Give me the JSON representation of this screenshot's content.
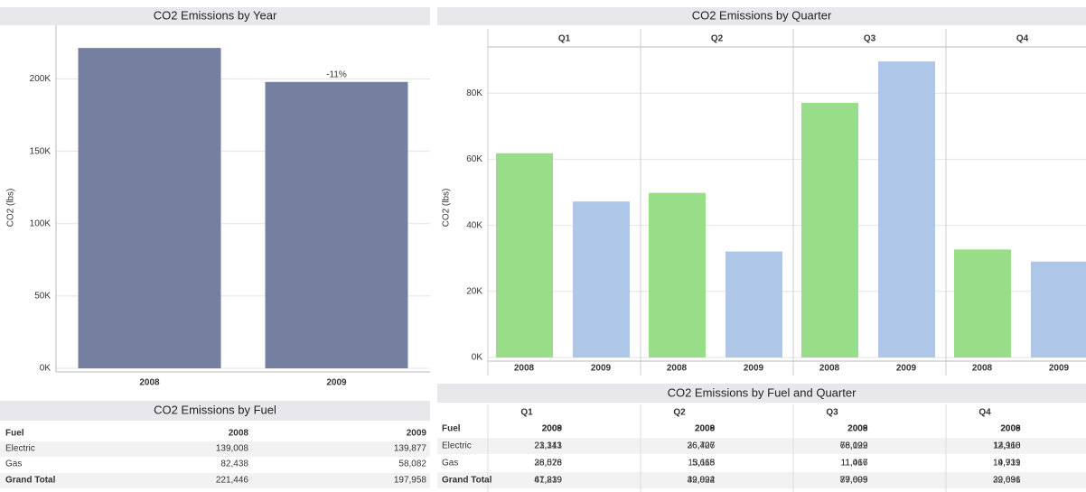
{
  "chart_data": [
    {
      "type": "bar",
      "title": "CO2 Emissions by Year",
      "y_label": "CO2 (lbs)",
      "categories": [
        "2008",
        "2009"
      ],
      "values": [
        221446,
        197958
      ],
      "color": "#757fa0",
      "annotation": "-11%",
      "ylim": [
        0,
        234000
      ],
      "yticks": [
        {
          "value": 0,
          "label": "0K"
        },
        {
          "value": 50000,
          "label": "50K"
        },
        {
          "value": 100000,
          "label": "100K"
        },
        {
          "value": 150000,
          "label": "150K"
        },
        {
          "value": 200000,
          "label": "200K"
        }
      ],
      "grid": true
    },
    {
      "type": "grouped-bar",
      "title": "CO2 Emissions by Quarter",
      "y_label": "CO2 (lbs)",
      "categories": [
        "Q1",
        "Q2",
        "Q3",
        "Q4"
      ],
      "series": [
        {
          "name": "2008",
          "color": "#98dd87",
          "values": [
            61839,
            49822,
            77095,
            32691
          ]
        },
        {
          "name": "2009",
          "color": "#aec7e8",
          "values": [
            47219,
            32094,
            89609,
            29036
          ]
        }
      ],
      "ylim": [
        0,
        94000
      ],
      "yticks": [
        {
          "value": 0,
          "label": "0K"
        },
        {
          "value": 20000,
          "label": "20K"
        },
        {
          "value": 40000,
          "label": "40K"
        },
        {
          "value": 60000,
          "label": "60K"
        },
        {
          "value": 80000,
          "label": "80K"
        }
      ],
      "grid": true
    }
  ],
  "fuel_table": {
    "title": "CO2 Emissions by Fuel",
    "header": [
      "Fuel",
      "2008",
      "2009"
    ],
    "rows": [
      [
        "Electric",
        "139,008",
        "139,877"
      ],
      [
        "Gas",
        "82,438",
        "58,082"
      ],
      [
        "Grand Total",
        "221,446",
        "197,958"
      ]
    ]
  },
  "fuel_quarter_table": {
    "title": "CO2 Emissions by Fuel and Quarter",
    "quarters": [
      "Q1",
      "Q2",
      "Q3",
      "Q4"
    ],
    "header": [
      "Fuel",
      "2008",
      "2009",
      "2008",
      "2009",
      "2008",
      "2009",
      "2008",
      "2009"
    ],
    "rows": [
      [
        "Electric",
        "23,313",
        "21,141",
        "36,707",
        "26,426",
        "66,029",
        "78,192",
        "12,960",
        "14,118"
      ],
      [
        "Gas",
        "38,526",
        "26,078",
        "13,115",
        "5,668",
        "11,066",
        "11,417",
        "19,731",
        "14,919"
      ],
      [
        "Grand Total",
        "61,839",
        "47,219",
        "49,822",
        "32,094",
        "77,095",
        "89,609",
        "32,691",
        "29,036"
      ]
    ]
  }
}
